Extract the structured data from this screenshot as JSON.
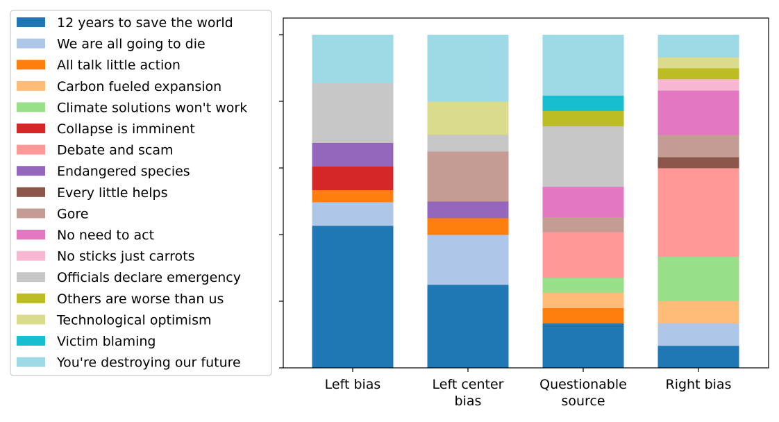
{
  "chart_data": {
    "type": "bar",
    "stacked": true,
    "normalized": true,
    "categories": [
      "Left bias",
      "Left center bias",
      "Questionable source",
      "Right bias"
    ],
    "category_lines": [
      [
        "Left bias"
      ],
      [
        "Left center",
        "bias"
      ],
      [
        "Questionable",
        "source"
      ],
      [
        "Right bias"
      ]
    ],
    "ylim": [
      0,
      1
    ],
    "y_tick_values": [
      0,
      0.2,
      0.4,
      0.6,
      0.8,
      1.0
    ],
    "y_tick_labels_shown": false,
    "grid": false,
    "legend_position": "left",
    "series": [
      {
        "name": "12 years to save the world",
        "color": "#1f77b4",
        "values": [
          0.427,
          0.25,
          0.134,
          0.067
        ]
      },
      {
        "name": "We are all going to die",
        "color": "#aec7e8",
        "values": [
          0.071,
          0.15,
          0.0,
          0.067
        ]
      },
      {
        "name": "All talk little action",
        "color": "#ff7f0e",
        "values": [
          0.036,
          0.05,
          0.046,
          0.0
        ]
      },
      {
        "name": "Carbon fueled expansion",
        "color": "#ffbb78",
        "values": [
          0.0,
          0.0,
          0.046,
          0.067
        ]
      },
      {
        "name": "Climate solutions won't work",
        "color": "#98df8a",
        "values": [
          0.0,
          0.0,
          0.045,
          0.133
        ]
      },
      {
        "name": "Collapse is imminent",
        "color": "#d62728",
        "values": [
          0.071,
          0.0,
          0.0,
          0.0
        ]
      },
      {
        "name": "Debate and scam",
        "color": "#ff9896",
        "values": [
          0.0,
          0.0,
          0.137,
          0.266
        ]
      },
      {
        "name": "Endangered species",
        "color": "#9467bd",
        "values": [
          0.071,
          0.05,
          0.0,
          0.0
        ]
      },
      {
        "name": "Every little helps",
        "color": "#8c564b",
        "values": [
          0.0,
          0.0,
          0.0,
          0.033
        ]
      },
      {
        "name": "Gore",
        "color": "#c49c94",
        "values": [
          0.0,
          0.15,
          0.045,
          0.067
        ]
      },
      {
        "name": "No need to act",
        "color": "#e377c2",
        "values": [
          0.0,
          0.0,
          0.091,
          0.133
        ]
      },
      {
        "name": "No sticks just carrots",
        "color": "#f7b6d2",
        "values": [
          0.0,
          0.0,
          0.0,
          0.034
        ]
      },
      {
        "name": "Officials declare emergency",
        "color": "#c7c7c7",
        "values": [
          0.179,
          0.05,
          0.182,
          0.0
        ]
      },
      {
        "name": "Others are worse than us",
        "color": "#bcbd22",
        "values": [
          0.0,
          0.0,
          0.046,
          0.033
        ]
      },
      {
        "name": "Technological optimism",
        "color": "#dbdb8d",
        "values": [
          0.0,
          0.1,
          0.0,
          0.033
        ]
      },
      {
        "name": "Victim blaming",
        "color": "#17becf",
        "values": [
          0.0,
          0.0,
          0.046,
          0.0
        ]
      },
      {
        "name": "You're destroying our future",
        "color": "#9edae5",
        "values": [
          0.145,
          0.2,
          0.182,
          0.067
        ]
      }
    ]
  }
}
